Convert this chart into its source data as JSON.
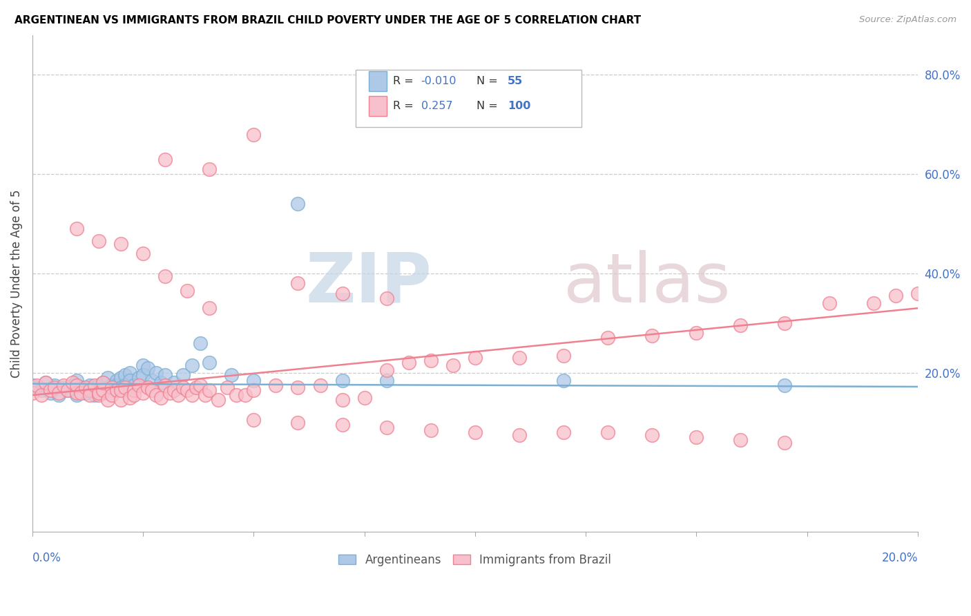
{
  "title": "ARGENTINEAN VS IMMIGRANTS FROM BRAZIL CHILD POVERTY UNDER THE AGE OF 5 CORRELATION CHART",
  "source": "Source: ZipAtlas.com",
  "ylabel": "Child Poverty Under the Age of 5",
  "right_yticks": [
    "80.0%",
    "60.0%",
    "40.0%",
    "20.0%"
  ],
  "right_ytick_vals": [
    0.8,
    0.6,
    0.4,
    0.2
  ],
  "color_blue": "#7bafd4",
  "color_blue_fill": "#aec8e8",
  "color_pink": "#f08090",
  "color_pink_fill": "#f8c0cc",
  "color_text_blue": "#4472c4",
  "xlim": [
    0.0,
    0.2
  ],
  "ylim": [
    -0.12,
    0.88
  ],
  "blue_trend_x": [
    0.0,
    0.2
  ],
  "blue_trend_y": [
    0.178,
    0.172
  ],
  "pink_trend_x": [
    0.0,
    0.2
  ],
  "pink_trend_y": [
    0.155,
    0.33
  ],
  "blue_scatter_x": [
    0.0,
    0.001,
    0.002,
    0.003,
    0.004,
    0.005,
    0.006,
    0.007,
    0.008,
    0.009,
    0.01,
    0.01,
    0.011,
    0.012,
    0.013,
    0.013,
    0.014,
    0.014,
    0.015,
    0.015,
    0.016,
    0.016,
    0.017,
    0.017,
    0.018,
    0.018,
    0.019,
    0.019,
    0.02,
    0.02,
    0.021,
    0.021,
    0.022,
    0.022,
    0.023,
    0.024,
    0.025,
    0.025,
    0.026,
    0.027,
    0.028,
    0.029,
    0.03,
    0.032,
    0.034,
    0.036,
    0.038,
    0.04,
    0.045,
    0.05,
    0.06,
    0.07,
    0.08,
    0.12,
    0.17
  ],
  "blue_scatter_y": [
    0.175,
    0.17,
    0.165,
    0.18,
    0.16,
    0.175,
    0.155,
    0.17,
    0.165,
    0.175,
    0.155,
    0.185,
    0.17,
    0.16,
    0.175,
    0.165,
    0.17,
    0.155,
    0.175,
    0.165,
    0.18,
    0.16,
    0.19,
    0.17,
    0.175,
    0.165,
    0.185,
    0.175,
    0.19,
    0.17,
    0.195,
    0.175,
    0.2,
    0.185,
    0.175,
    0.19,
    0.215,
    0.195,
    0.21,
    0.185,
    0.2,
    0.18,
    0.195,
    0.18,
    0.195,
    0.215,
    0.26,
    0.22,
    0.195,
    0.185,
    0.54,
    0.185,
    0.185,
    0.185,
    0.175
  ],
  "pink_scatter_x": [
    0.0,
    0.001,
    0.002,
    0.003,
    0.004,
    0.005,
    0.006,
    0.007,
    0.008,
    0.009,
    0.01,
    0.01,
    0.011,
    0.012,
    0.013,
    0.013,
    0.014,
    0.015,
    0.015,
    0.016,
    0.016,
    0.017,
    0.018,
    0.018,
    0.019,
    0.02,
    0.02,
    0.021,
    0.022,
    0.023,
    0.023,
    0.024,
    0.025,
    0.026,
    0.027,
    0.028,
    0.029,
    0.03,
    0.031,
    0.032,
    0.033,
    0.034,
    0.035,
    0.036,
    0.037,
    0.038,
    0.039,
    0.04,
    0.042,
    0.044,
    0.046,
    0.048,
    0.05,
    0.055,
    0.06,
    0.065,
    0.07,
    0.075,
    0.08,
    0.085,
    0.09,
    0.095,
    0.1,
    0.11,
    0.12,
    0.13,
    0.14,
    0.15,
    0.16,
    0.17,
    0.18,
    0.19,
    0.195,
    0.2,
    0.01,
    0.015,
    0.02,
    0.025,
    0.03,
    0.035,
    0.04,
    0.05,
    0.06,
    0.07,
    0.08,
    0.09,
    0.1,
    0.11,
    0.12,
    0.13,
    0.14,
    0.15,
    0.16,
    0.17,
    0.03,
    0.04,
    0.05,
    0.06,
    0.07,
    0.08
  ],
  "pink_scatter_y": [
    0.16,
    0.175,
    0.155,
    0.18,
    0.165,
    0.17,
    0.16,
    0.175,
    0.165,
    0.18,
    0.16,
    0.175,
    0.16,
    0.17,
    0.165,
    0.155,
    0.175,
    0.155,
    0.16,
    0.165,
    0.18,
    0.145,
    0.17,
    0.155,
    0.165,
    0.145,
    0.165,
    0.17,
    0.15,
    0.165,
    0.155,
    0.175,
    0.16,
    0.17,
    0.165,
    0.155,
    0.15,
    0.175,
    0.16,
    0.165,
    0.155,
    0.17,
    0.165,
    0.155,
    0.17,
    0.175,
    0.155,
    0.165,
    0.145,
    0.17,
    0.155,
    0.155,
    0.165,
    0.175,
    0.17,
    0.175,
    0.145,
    0.15,
    0.205,
    0.22,
    0.225,
    0.215,
    0.23,
    0.23,
    0.235,
    0.27,
    0.275,
    0.28,
    0.295,
    0.3,
    0.34,
    0.34,
    0.355,
    0.36,
    0.49,
    0.465,
    0.46,
    0.44,
    0.395,
    0.365,
    0.33,
    0.105,
    0.1,
    0.095,
    0.09,
    0.085,
    0.08,
    0.075,
    0.08,
    0.08,
    0.075,
    0.07,
    0.065,
    0.06,
    0.63,
    0.61,
    0.68,
    0.38,
    0.36,
    0.35
  ],
  "fig_width": 14.06,
  "fig_height": 8.92,
  "dpi": 100
}
